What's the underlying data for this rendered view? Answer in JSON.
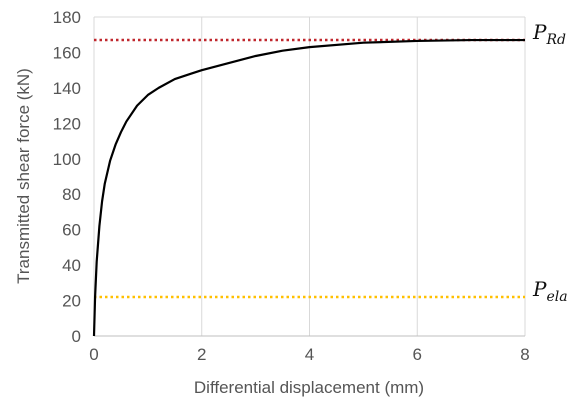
{
  "chart_data": {
    "type": "line",
    "title": "",
    "xlabel": "Differential displacement (mm)",
    "ylabel": "Transmitted shear force (kN)",
    "xlim": [
      0,
      8
    ],
    "ylim": [
      0,
      180
    ],
    "x_ticks": [
      "0",
      "2",
      "4",
      "6",
      "8"
    ],
    "y_ticks": [
      "0",
      "20",
      "40",
      "60",
      "80",
      "100",
      "120",
      "140",
      "160",
      "180"
    ],
    "grid": "vertical",
    "series": [
      {
        "color": "#000000",
        "x": [
          0,
          0.02,
          0.05,
          0.1,
          0.15,
          0.2,
          0.3,
          0.4,
          0.5,
          0.6,
          0.8,
          1.0,
          1.2,
          1.5,
          1.8,
          2.0,
          2.5,
          3.0,
          3.5,
          4.0,
          5.0,
          6.0,
          7.0,
          8.0
        ],
        "y": [
          0,
          22,
          42,
          62,
          76,
          86,
          99,
          108,
          115,
          121,
          130,
          136,
          140,
          145,
          148,
          150,
          154,
          158,
          161,
          163,
          165.5,
          166.5,
          167,
          167
        ]
      }
    ],
    "reference_lines": [
      {
        "y": 167,
        "color": "#c0272d",
        "style": "dotted",
        "label": "P",
        "label_sub": "Rd"
      },
      {
        "y": 22,
        "color": "#ffc000",
        "style": "dotted",
        "label": "P",
        "label_sub": "ela"
      }
    ]
  }
}
